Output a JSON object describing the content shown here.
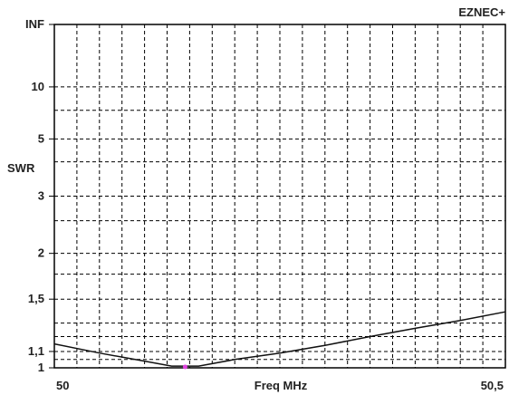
{
  "app_label": "EZNEC+",
  "chart_data": {
    "type": "line",
    "xlabel": "Freq MHz",
    "ylabel": "SWR",
    "x_tick_labels": [
      "50",
      "50,5"
    ],
    "xlim": [
      50,
      50.5
    ],
    "y_scale": "reflection-coefficient (SWR)",
    "y_ticks": [
      {
        "value": 1,
        "label": "1"
      },
      {
        "value": 1.1,
        "label": "1,1"
      },
      {
        "value": 1.5,
        "label": "1,5"
      },
      {
        "value": 2,
        "label": "2"
      },
      {
        "value": 3,
        "label": "3"
      },
      {
        "value": 5,
        "label": "5"
      },
      {
        "value": 10,
        "label": "10"
      },
      {
        "value": "INF",
        "label": "INF"
      }
    ],
    "grid": true,
    "series": [
      {
        "color": "#111111",
        "x": [
          50.0,
          50.05,
          50.1,
          50.13,
          50.16,
          50.2,
          50.25,
          50.3,
          50.35,
          50.4,
          50.45,
          50.5
        ],
        "y": [
          1.15,
          1.09,
          1.04,
          1.01,
          1.01,
          1.05,
          1.09,
          1.14,
          1.2,
          1.26,
          1.32,
          1.39
        ]
      }
    ],
    "marker": {
      "x": 50.145,
      "y": 1.0,
      "color": "#e040e0"
    }
  }
}
